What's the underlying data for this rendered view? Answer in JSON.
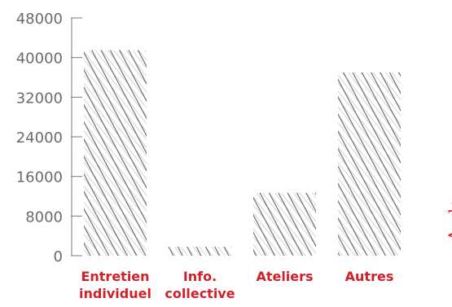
{
  "chart_data": {
    "type": "bar",
    "categories": [
      [
        "Entretien",
        "individuel"
      ],
      [
        "Info.",
        "collective"
      ],
      [
        "Ateliers"
      ],
      [
        "Autres"
      ]
    ],
    "values": [
      41500,
      1800,
      12700,
      37000
    ],
    "y_ticks": [
      "0",
      "8000",
      "16000",
      "24000",
      "32000",
      "40000",
      "48000"
    ],
    "ylim": [
      0,
      48000
    ],
    "grid": false,
    "side_label": "Aude",
    "colors": {
      "bar_hatch": "#6e6e6e",
      "label": "#d0202a",
      "axis": "#7a7a7a",
      "tick_text": "#6b6b6b"
    }
  }
}
